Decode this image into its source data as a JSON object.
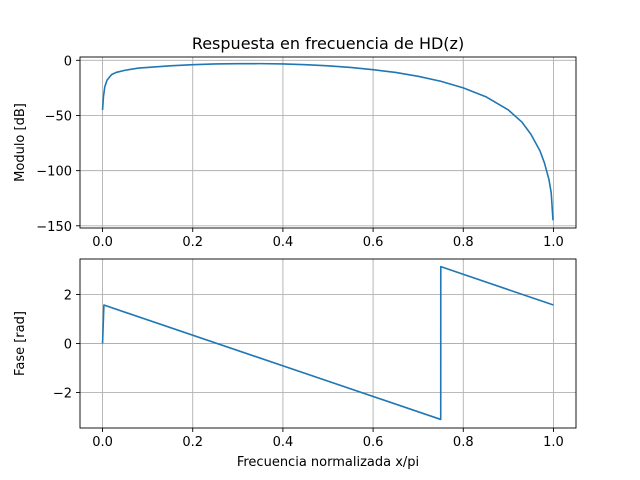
{
  "figure": {
    "title": "Respuesta en frecuencia de HD(z)"
  },
  "chart_data": [
    {
      "type": "line",
      "title": "Respuesta en frecuencia de HD(z)",
      "xlabel": "",
      "ylabel": "Modulo [dB]",
      "xlim": [
        -0.05,
        1.05
      ],
      "ylim": [
        -152,
        3
      ],
      "xticks": [
        0.0,
        0.2,
        0.4,
        0.6,
        0.8,
        1.0
      ],
      "xtick_labels": [
        "0.0",
        "0.2",
        "0.4",
        "0.6",
        "0.8",
        "1.0"
      ],
      "yticks": [
        0,
        -50,
        -100,
        -150
      ],
      "ytick_labels": [
        "0",
        "−50",
        "−100",
        "−150"
      ],
      "grid": true,
      "color": "#1f77b4",
      "series": [
        {
          "name": "Modulo",
          "x": [
            0,
            0.002,
            0.005,
            0.01,
            0.02,
            0.03,
            0.05,
            0.08,
            0.1,
            0.15,
            0.2,
            0.25,
            0.3,
            0.35,
            0.4,
            0.45,
            0.5,
            0.55,
            0.6,
            0.65,
            0.7,
            0.75,
            0.8,
            0.85,
            0.9,
            0.93,
            0.95,
            0.97,
            0.98,
            0.99,
            0.995,
            0.999
          ],
          "values": [
            -45,
            -33,
            -24,
            -18,
            -13,
            -11,
            -9,
            -7,
            -6.5,
            -5,
            -4,
            -3.3,
            -3.1,
            -3,
            -3.3,
            -4,
            -5,
            -6.5,
            -8.5,
            -11,
            -14.5,
            -19,
            -25,
            -33,
            -45,
            -56,
            -67,
            -82,
            -93,
            -108,
            -120,
            -145
          ]
        }
      ]
    },
    {
      "type": "line",
      "title": "",
      "xlabel": "Frecuencia normalizada x/pi",
      "ylabel": "Fase [rad]",
      "xlim": [
        -0.05,
        1.05
      ],
      "ylim": [
        -3.45,
        3.45
      ],
      "xticks": [
        0.0,
        0.2,
        0.4,
        0.6,
        0.8,
        1.0
      ],
      "xtick_labels": [
        "0.0",
        "0.2",
        "0.4",
        "0.6",
        "0.8",
        "1.0"
      ],
      "yticks": [
        2,
        0,
        -2
      ],
      "ytick_labels": [
        "2",
        "0",
        "−2"
      ],
      "grid": true,
      "color": "#1f77b4",
      "series": [
        {
          "name": "Fase",
          "x": [
            0,
            0.003,
            0.75,
            0.7501,
            1.0
          ],
          "values": [
            0,
            1.57,
            -3.1,
            3.14,
            1.57
          ]
        }
      ]
    }
  ]
}
